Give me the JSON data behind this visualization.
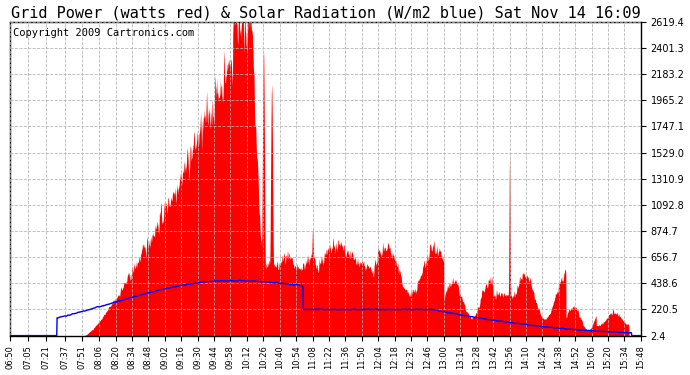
{
  "title": "Grid Power (watts red) & Solar Radiation (W/m2 blue) Sat Nov 14 16:09",
  "copyright": "Copyright 2009 Cartronics.com",
  "yticks": [
    2.4,
    220.5,
    438.6,
    656.7,
    874.7,
    1092.8,
    1310.9,
    1529.0,
    1747.1,
    1965.2,
    2183.2,
    2401.3,
    2619.4
  ],
  "ymin": 2.4,
  "ymax": 2619.4,
  "bg_color": "#ffffff",
  "plot_bg_color": "#ffffff",
  "grid_color": "#b0b0b0",
  "red_color": "#ff0000",
  "blue_color": "#0000ff",
  "title_fontsize": 11,
  "copyright_fontsize": 7.5,
  "xtick_labels": [
    "06:50",
    "07:05",
    "07:21",
    "07:37",
    "07:51",
    "08:06",
    "08:20",
    "08:34",
    "08:48",
    "09:02",
    "09:16",
    "09:30",
    "09:44",
    "09:58",
    "10:12",
    "10:26",
    "10:40",
    "10:54",
    "11:08",
    "11:22",
    "11:36",
    "11:50",
    "12:04",
    "12:18",
    "12:32",
    "12:46",
    "13:00",
    "13:14",
    "13:28",
    "13:42",
    "13:56",
    "14:10",
    "14:24",
    "14:38",
    "14:52",
    "15:06",
    "15:20",
    "15:34",
    "15:48"
  ]
}
